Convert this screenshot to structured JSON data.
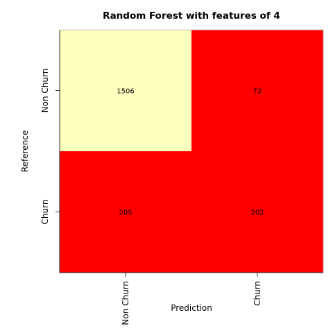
{
  "chart_data": {
    "type": "heatmap",
    "title": "Random Forest with features of 4",
    "xlabel": "Prediction",
    "ylabel": "Reference",
    "x_categories": [
      "Non Churn",
      "Churn"
    ],
    "y_categories": [
      "Non Churn",
      "Churn"
    ],
    "values": [
      [
        1506,
        72
      ],
      [
        205,
        202
      ]
    ],
    "cell_colors": [
      [
        "#FFFFC0",
        "#FF0000"
      ],
      [
        "#FF0000",
        "#FF0000"
      ]
    ],
    "grid": false
  }
}
